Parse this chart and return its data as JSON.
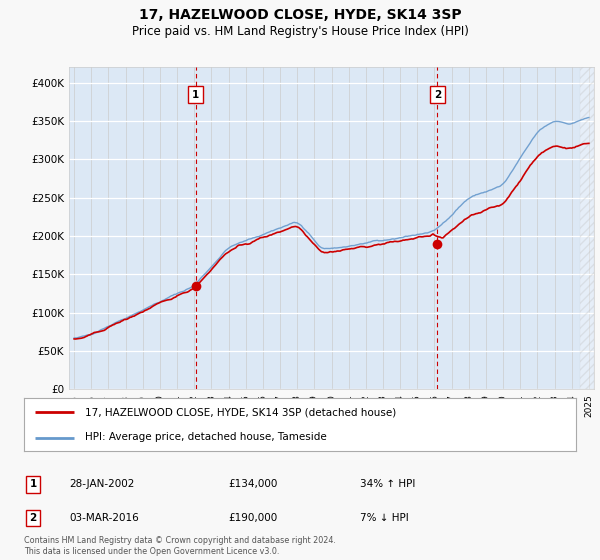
{
  "title": "17, HAZELWOOD CLOSE, HYDE, SK14 3SP",
  "subtitle": "Price paid vs. HM Land Registry's House Price Index (HPI)",
  "fig_facecolor": "#f8f8f8",
  "plot_bg_color": "#dce8f5",
  "legend_label_red": "17, HAZELWOOD CLOSE, HYDE, SK14 3SP (detached house)",
  "legend_label_blue": "HPI: Average price, detached house, Tameside",
  "transaction1_date": "28-JAN-2002",
  "transaction1_price": "£134,000",
  "transaction1_hpi": "34% ↑ HPI",
  "transaction2_date": "03-MAR-2016",
  "transaction2_price": "£190,000",
  "transaction2_hpi": "7% ↓ HPI",
  "footer": "Contains HM Land Registry data © Crown copyright and database right 2024.\nThis data is licensed under the Open Government Licence v3.0.",
  "ylim_min": 0,
  "ylim_max": 420000,
  "yticks": [
    0,
    50000,
    100000,
    150000,
    200000,
    250000,
    300000,
    350000,
    400000
  ],
  "ytick_labels": [
    "£0",
    "£50K",
    "£100K",
    "£150K",
    "£200K",
    "£250K",
    "£300K",
    "£350K",
    "£400K"
  ],
  "red_color": "#cc0000",
  "blue_color": "#6699cc",
  "vline_color": "#cc0000",
  "marker1_x_year": 2002.08,
  "marker1_y": 134000,
  "marker2_x_year": 2016.17,
  "marker2_y": 190000,
  "hatch_start_year": 2024.5,
  "xmin": 1994.7,
  "xmax": 2025.3
}
